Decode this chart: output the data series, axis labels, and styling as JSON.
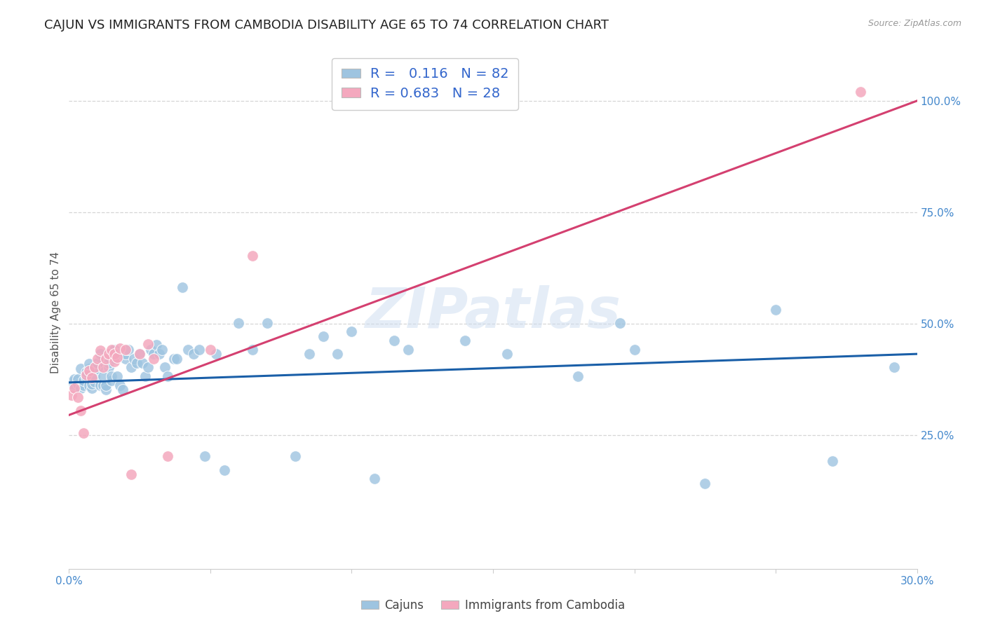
{
  "title": "CAJUN VS IMMIGRANTS FROM CAMBODIA DISABILITY AGE 65 TO 74 CORRELATION CHART",
  "source": "Source: ZipAtlas.com",
  "ylabel": "Disability Age 65 to 74",
  "xlim": [
    0.0,
    0.3
  ],
  "ylim": [
    -0.05,
    1.1
  ],
  "legend_R1": "0.116",
  "legend_N1": "82",
  "legend_R2": "0.683",
  "legend_N2": "28",
  "blue_color": "#9ec4e0",
  "pink_color": "#f4a8be",
  "blue_line_color": "#1a5fa8",
  "pink_line_color": "#d44070",
  "watermark": "ZIPatlas",
  "legend_label1": "Cajuns",
  "legend_label2": "Immigrants from Cambodia",
  "blue_x": [
    0.001,
    0.002,
    0.002,
    0.003,
    0.003,
    0.004,
    0.004,
    0.005,
    0.005,
    0.006,
    0.006,
    0.007,
    0.007,
    0.007,
    0.008,
    0.008,
    0.009,
    0.009,
    0.01,
    0.01,
    0.011,
    0.011,
    0.012,
    0.012,
    0.013,
    0.013,
    0.014,
    0.014,
    0.015,
    0.015,
    0.016,
    0.016,
    0.017,
    0.017,
    0.018,
    0.019,
    0.02,
    0.02,
    0.021,
    0.022,
    0.023,
    0.024,
    0.025,
    0.026,
    0.027,
    0.028,
    0.029,
    0.03,
    0.031,
    0.032,
    0.033,
    0.034,
    0.035,
    0.037,
    0.038,
    0.04,
    0.042,
    0.044,
    0.046,
    0.048,
    0.052,
    0.055,
    0.06,
    0.065,
    0.07,
    0.08,
    0.085,
    0.09,
    0.095,
    0.1,
    0.108,
    0.115,
    0.12,
    0.14,
    0.155,
    0.18,
    0.195,
    0.2,
    0.225,
    0.25,
    0.27,
    0.292
  ],
  "blue_y": [
    0.37,
    0.375,
    0.36,
    0.365,
    0.375,
    0.355,
    0.4,
    0.362,
    0.372,
    0.38,
    0.392,
    0.362,
    0.4,
    0.41,
    0.355,
    0.365,
    0.37,
    0.382,
    0.4,
    0.412,
    0.362,
    0.432,
    0.382,
    0.362,
    0.352,
    0.362,
    0.402,
    0.412,
    0.372,
    0.382,
    0.422,
    0.442,
    0.432,
    0.382,
    0.362,
    0.352,
    0.422,
    0.432,
    0.442,
    0.402,
    0.422,
    0.412,
    0.432,
    0.412,
    0.382,
    0.402,
    0.442,
    0.432,
    0.452,
    0.432,
    0.442,
    0.402,
    0.382,
    0.422,
    0.422,
    0.582,
    0.442,
    0.432,
    0.442,
    0.202,
    0.432,
    0.172,
    0.502,
    0.442,
    0.502,
    0.202,
    0.432,
    0.472,
    0.432,
    0.482,
    0.152,
    0.462,
    0.442,
    0.462,
    0.432,
    0.382,
    0.502,
    0.442,
    0.142,
    0.532,
    0.192,
    0.402
  ],
  "pink_x": [
    0.001,
    0.002,
    0.003,
    0.004,
    0.005,
    0.006,
    0.007,
    0.008,
    0.009,
    0.01,
    0.011,
    0.012,
    0.013,
    0.014,
    0.015,
    0.016,
    0.016,
    0.017,
    0.018,
    0.02,
    0.022,
    0.025,
    0.028,
    0.03,
    0.035,
    0.05,
    0.065,
    0.28
  ],
  "pink_y": [
    0.34,
    0.355,
    0.335,
    0.305,
    0.255,
    0.385,
    0.395,
    0.378,
    0.402,
    0.422,
    0.44,
    0.402,
    0.422,
    0.432,
    0.442,
    0.415,
    0.432,
    0.425,
    0.445,
    0.442,
    0.162,
    0.432,
    0.455,
    0.422,
    0.202,
    0.442,
    0.652,
    1.02
  ],
  "blue_trend_x": [
    0.0,
    0.3
  ],
  "blue_trend_y": [
    0.368,
    0.432
  ],
  "pink_trend_x": [
    0.0,
    0.3
  ],
  "pink_trend_y": [
    0.295,
    1.0
  ],
  "grid_yticks": [
    0.25,
    0.5,
    0.75,
    1.0
  ],
  "grid_yticklabels": [
    "25.0%",
    "50.0%",
    "75.0%",
    "100.0%"
  ],
  "background_color": "#ffffff",
  "grid_color": "#cccccc",
  "title_fontsize": 13,
  "axis_label_fontsize": 11,
  "tick_fontsize": 11,
  "source_fontsize": 9
}
